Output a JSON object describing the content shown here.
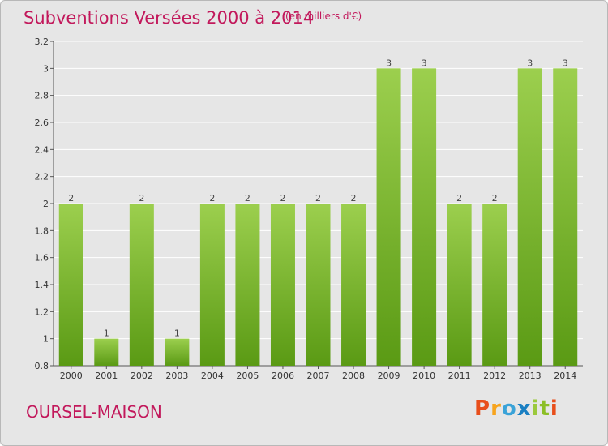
{
  "header": {
    "title": "Subventions Versées 2000 à 2014",
    "unit_note": "(en milliers d'€)"
  },
  "footer": {
    "place_name": "OURSEL-MAISON",
    "logo_text": "Proxiti"
  },
  "colors": {
    "title": "#c2185b",
    "bar_top": "#9ccf4e",
    "bar_bottom": "#5a9a14",
    "background": "#e6e6e6",
    "grid": "#ffffff",
    "logo": [
      "#e84e1b",
      "#f7a41d",
      "#3aa3d8",
      "#1a7fc2",
      "#9bc93c",
      "#8cbf26",
      "#e84e1b"
    ]
  },
  "chart_data": {
    "type": "bar",
    "title": "Subventions Versées 2000 à 2014",
    "subtitle": "(en milliers d'€)",
    "xlabel": "",
    "ylabel": "",
    "categories": [
      "2000",
      "2001",
      "2002",
      "2003",
      "2004",
      "2005",
      "2006",
      "2007",
      "2008",
      "2009",
      "2010",
      "2011",
      "2012",
      "2013",
      "2014"
    ],
    "values": [
      2,
      1,
      2,
      1,
      2,
      2,
      2,
      2,
      2,
      3,
      3,
      2,
      2,
      3,
      3
    ],
    "bar_heights": [
      2,
      1,
      2,
      1,
      2,
      2,
      2,
      2,
      2,
      3,
      3,
      2,
      2,
      3,
      3
    ],
    "data_labels": [
      "2",
      "1",
      "2",
      "1",
      "2",
      "2",
      "2",
      "2",
      "2",
      "3",
      "3",
      "2",
      "2",
      "3",
      "3"
    ],
    "ylim": [
      0.8,
      3.2
    ],
    "yticks": [
      "0.8",
      "1",
      "1.2",
      "1.4",
      "1.6",
      "1.8",
      "2",
      "2.2",
      "2.4",
      "2.6",
      "2.8",
      "3",
      "3.2"
    ],
    "grid": true,
    "legend": "none"
  }
}
